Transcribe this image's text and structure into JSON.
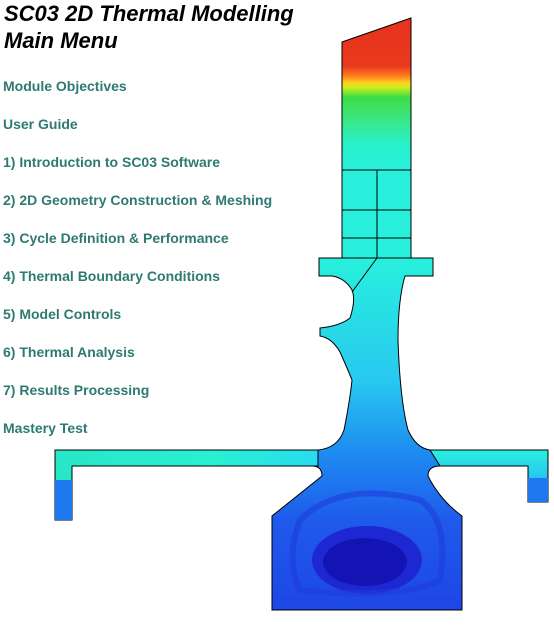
{
  "page": {
    "title_line1": "SC03 2D Thermal Modelling",
    "title_line2": "Main Menu"
  },
  "menu": {
    "items": [
      {
        "label": "Module Objectives"
      },
      {
        "label": "User Guide"
      },
      {
        "label": "1) Introduction to SC03 Software"
      },
      {
        "label": "2) 2D Geometry Construction & Meshing"
      },
      {
        "label": "3) Cycle Definition & Performance"
      },
      {
        "label": "4) Thermal Boundary Conditions"
      },
      {
        "label": "5) Model Controls"
      },
      {
        "label": "6) Thermal Analysis"
      },
      {
        "label": "7) Results Processing"
      },
      {
        "label": "Mastery Test"
      }
    ]
  },
  "colors": {
    "menu_link": "#2e7a73",
    "title": "#000000",
    "hot": "#e8321e",
    "warm": "#ffd21e",
    "mid": "#3ce66e",
    "cool": "#28f0dc",
    "cold": "#1e4be6",
    "coldest": "#1414b4",
    "outline": "#000000"
  }
}
